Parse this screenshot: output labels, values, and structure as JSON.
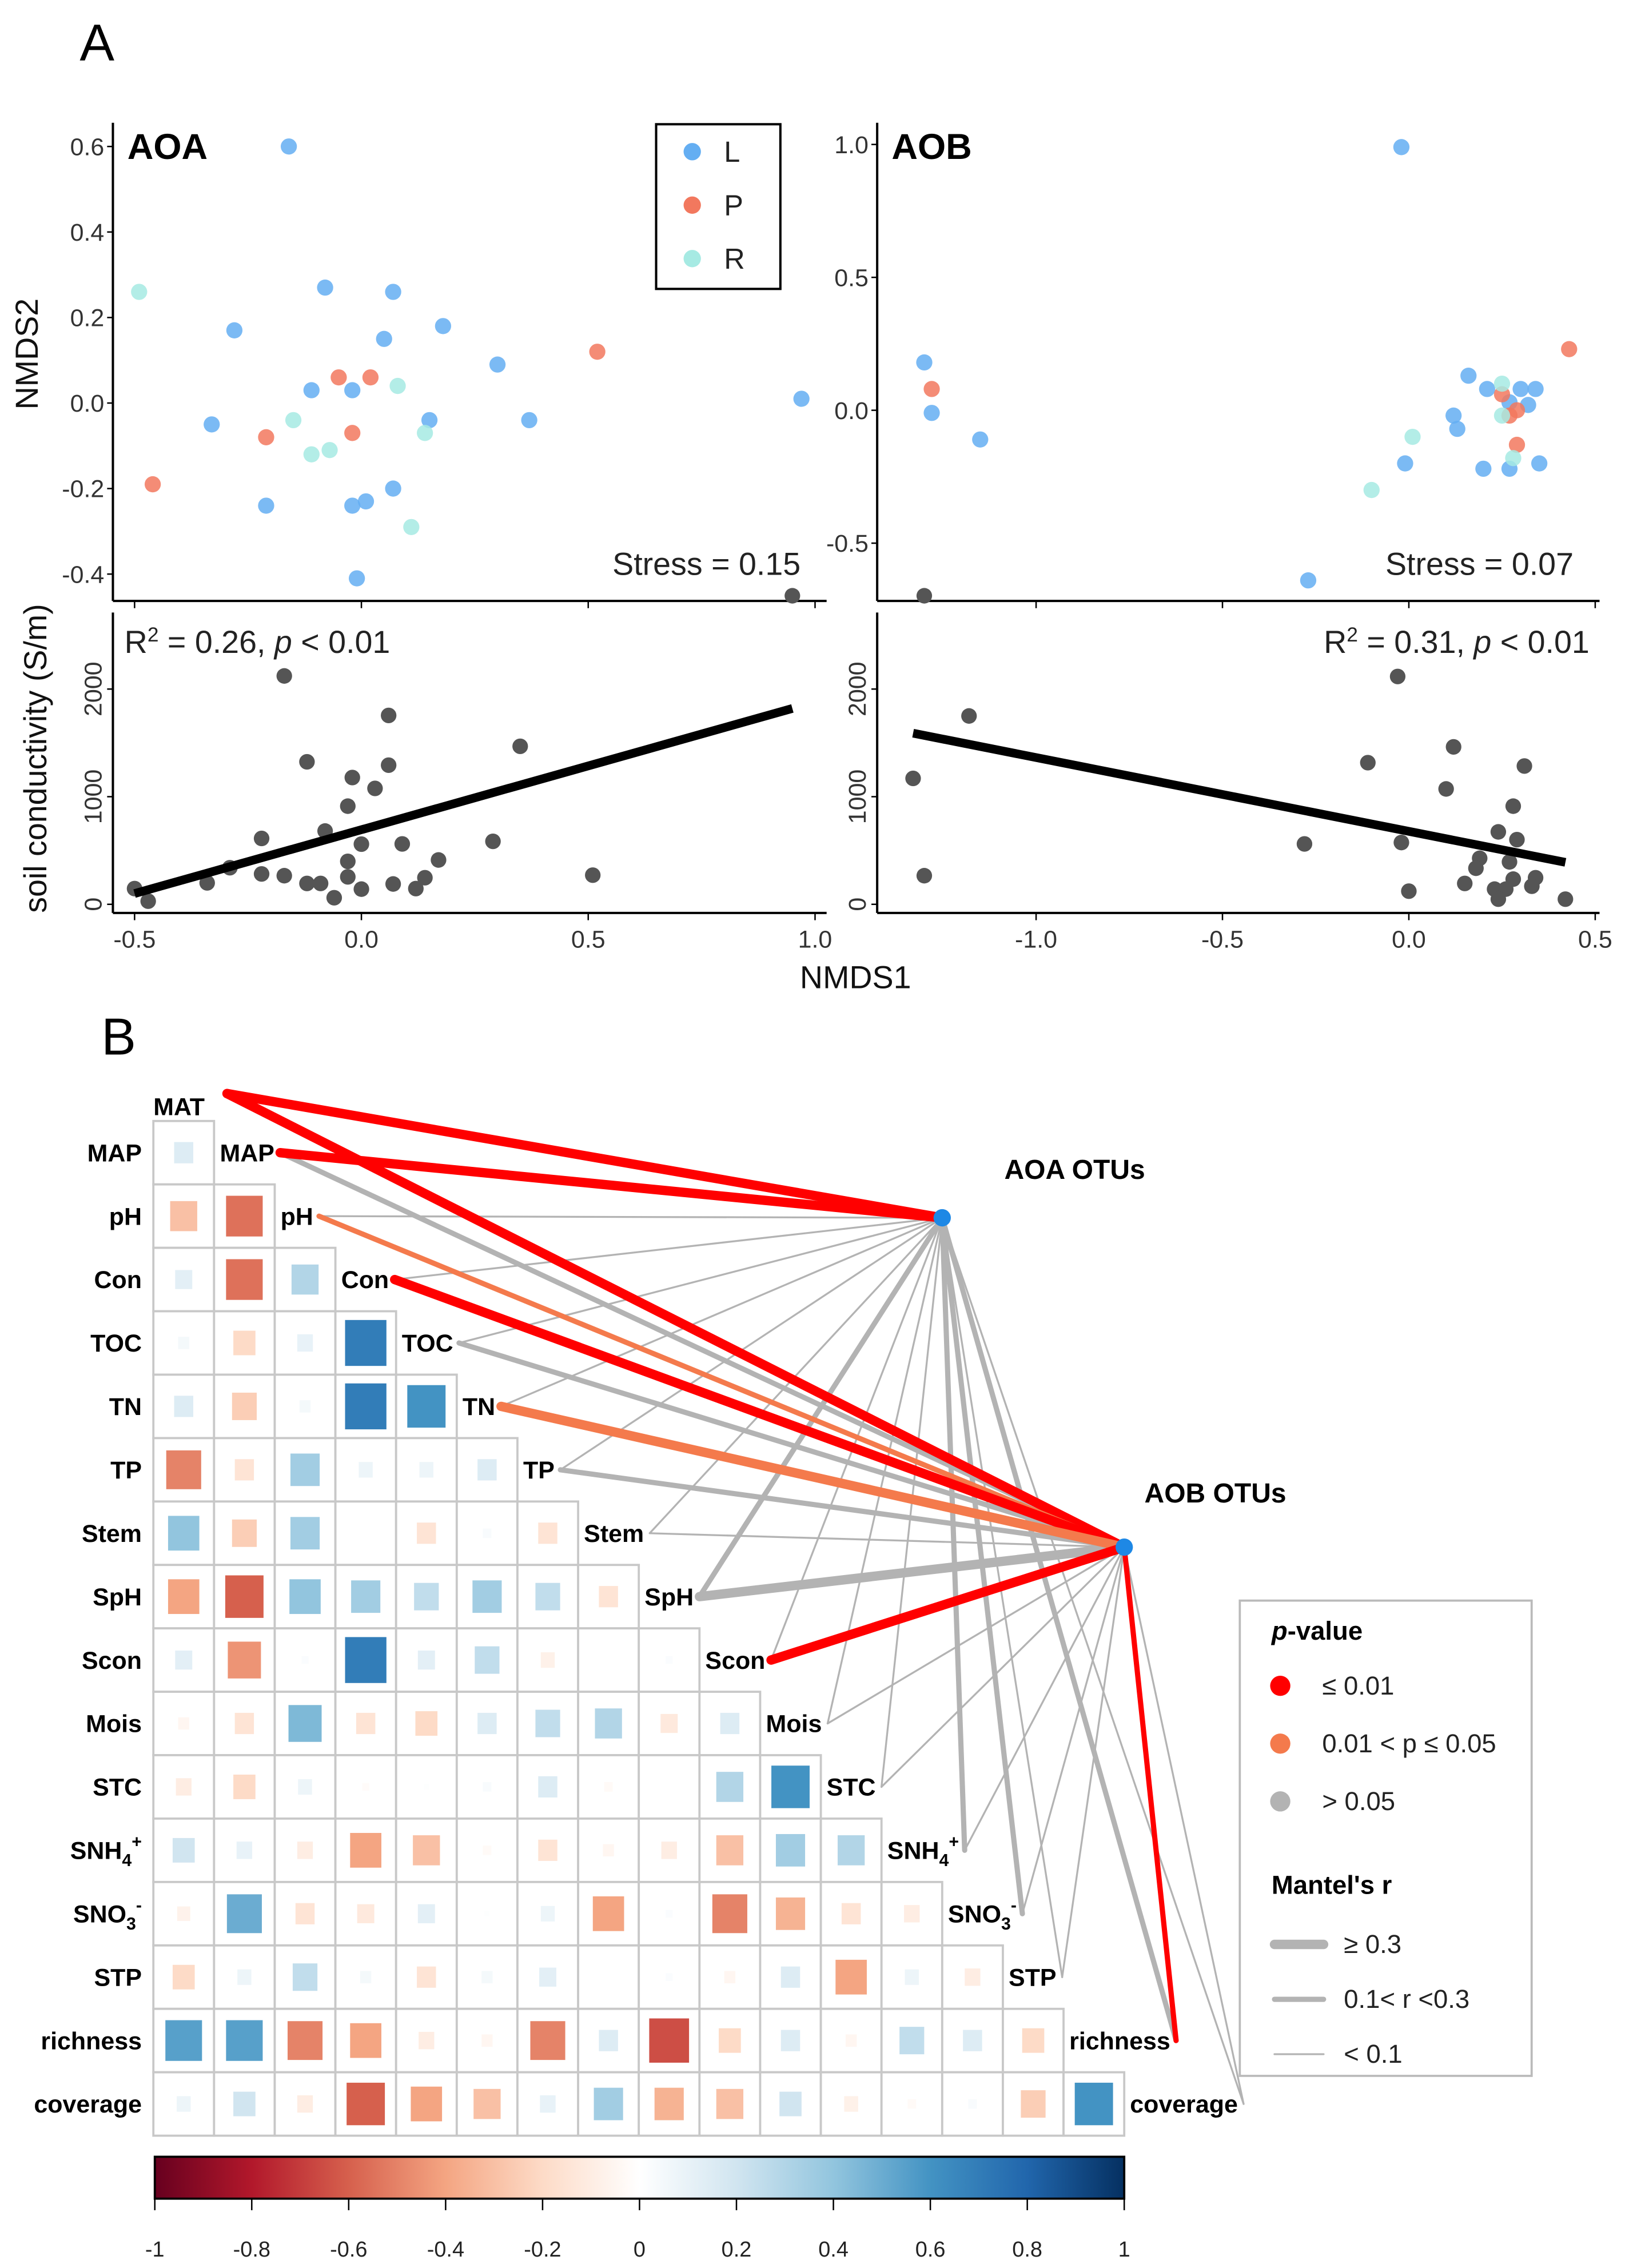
{
  "panel_labels": {
    "a": "A",
    "b": "B"
  },
  "chart_data": [
    {
      "id": "aoa_nmds",
      "type": "scatter",
      "title": "AOA",
      "xlabel": "NMDS1",
      "ylabel": "NMDS2",
      "xticks": [
        -0.5,
        0.0,
        0.5,
        1.0
      ],
      "yticks": [
        -0.4,
        -0.2,
        0.0,
        0.2,
        0.4,
        0.6
      ],
      "ytick_labels": [
        "-0.4",
        "-0.2",
        "0.0",
        "0.2",
        "0.4",
        "0.6"
      ],
      "annotation": "Stress = 0.15",
      "legend": {
        "position": "top-right",
        "entries": [
          "L",
          "P",
          "R"
        ]
      },
      "series": [
        {
          "name": "L",
          "color": "#64AEF2",
          "points": [
            [
              -0.16,
              0.6
            ],
            [
              -0.08,
              0.27
            ],
            [
              0.07,
              0.26
            ],
            [
              0.18,
              0.18
            ],
            [
              -0.28,
              0.17
            ],
            [
              0.05,
              0.15
            ],
            [
              0.3,
              0.09
            ],
            [
              -0.11,
              0.03
            ],
            [
              -0.02,
              0.03
            ],
            [
              0.97,
              0.01
            ],
            [
              -0.33,
              -0.05
            ],
            [
              0.15,
              -0.04
            ],
            [
              0.37,
              -0.04
            ],
            [
              -0.21,
              -0.24
            ],
            [
              -0.02,
              -0.24
            ],
            [
              0.01,
              -0.23
            ],
            [
              0.07,
              -0.2
            ],
            [
              -0.01,
              -0.41
            ]
          ]
        },
        {
          "name": "P",
          "color": "#F2785E",
          "points": [
            [
              -0.46,
              -0.19
            ],
            [
              0.52,
              0.12
            ],
            [
              -0.05,
              0.06
            ],
            [
              0.02,
              0.06
            ],
            [
              -0.21,
              -0.08
            ],
            [
              -0.02,
              -0.07
            ]
          ]
        },
        {
          "name": "R",
          "color": "#A6EAE3",
          "points": [
            [
              -0.49,
              0.26
            ],
            [
              0.08,
              0.04
            ],
            [
              -0.15,
              -0.04
            ],
            [
              0.14,
              -0.07
            ],
            [
              -0.11,
              -0.12
            ],
            [
              -0.07,
              -0.11
            ],
            [
              0.11,
              -0.29
            ]
          ]
        }
      ]
    },
    {
      "id": "aob_nmds",
      "type": "scatter",
      "title": "AOB",
      "xlabel": "NMDS1",
      "ylabel": "NMDS2",
      "xticks": [
        -1.0,
        -0.5,
        0.0,
        0.5
      ],
      "yticks": [
        -0.5,
        0.0,
        0.5,
        1.0
      ],
      "ytick_labels": [
        "-0.5",
        "0.0",
        "0.5",
        "1.0"
      ],
      "annotation": "Stress = 0.07",
      "series": [
        {
          "name": "L",
          "color": "#64AEF2",
          "points": [
            [
              -0.02,
              0.99
            ],
            [
              -1.3,
              0.18
            ],
            [
              -1.28,
              -0.01
            ],
            [
              -1.15,
              -0.11
            ],
            [
              -0.27,
              -0.64
            ],
            [
              -0.01,
              -0.2
            ],
            [
              0.16,
              0.13
            ],
            [
              0.21,
              0.08
            ],
            [
              0.12,
              -0.02
            ],
            [
              0.13,
              -0.07
            ],
            [
              0.2,
              -0.22
            ],
            [
              0.27,
              -0.22
            ],
            [
              0.35,
              -0.2
            ],
            [
              0.3,
              0.08
            ],
            [
              0.34,
              0.08
            ],
            [
              0.32,
              0.02
            ],
            [
              0.27,
              0.03
            ]
          ]
        },
        {
          "name": "P",
          "color": "#F2785E",
          "points": [
            [
              -1.28,
              0.08
            ],
            [
              0.43,
              0.23
            ],
            [
              0.25,
              0.06
            ],
            [
              0.29,
              0.0
            ],
            [
              0.27,
              -0.02
            ],
            [
              0.29,
              -0.13
            ]
          ]
        },
        {
          "name": "R",
          "color": "#A6EAE3",
          "points": [
            [
              -0.1,
              -0.3
            ],
            [
              0.01,
              -0.1
            ],
            [
              0.25,
              0.1
            ],
            [
              0.25,
              -0.02
            ],
            [
              0.28,
              -0.18
            ]
          ]
        }
      ]
    },
    {
      "id": "aoa_cond",
      "type": "scatter",
      "xlabel": "NMDS1",
      "ylabel": "soil conductivity (S/m)",
      "xticks": [
        -0.5,
        0.0,
        0.5,
        1.0
      ],
      "xtick_labels": [
        "-0.5",
        "0.0",
        "0.5",
        "1.0"
      ],
      "yticks": [
        0,
        1000,
        2000
      ],
      "ytick_labels": [
        "0",
        "1000",
        "2000"
      ],
      "annotation": {
        "r": "R",
        "sup": "2",
        "value": " = 0.26, ",
        "p": "p",
        "p_value": " < 0.01"
      },
      "color": "#555555",
      "points": [
        [
          0.95,
          2867
        ],
        [
          -0.17,
          2122
        ],
        [
          0.06,
          1755
        ],
        [
          0.35,
          1468
        ],
        [
          -0.12,
          1324
        ],
        [
          0.06,
          1293
        ],
        [
          -0.02,
          1178
        ],
        [
          0.03,
          1077
        ],
        [
          -0.03,
          912
        ],
        [
          -0.08,
          681
        ],
        [
          -0.22,
          612
        ],
        [
          0.29,
          585
        ],
        [
          0.0,
          559
        ],
        [
          0.09,
          561
        ],
        [
          0.17,
          412
        ],
        [
          -0.03,
          399
        ],
        [
          -0.29,
          340
        ],
        [
          -0.22,
          282
        ],
        [
          -0.17,
          266
        ],
        [
          -0.03,
          255
        ],
        [
          0.14,
          247
        ],
        [
          0.51,
          271
        ],
        [
          -0.34,
          199
        ],
        [
          -0.12,
          194
        ],
        [
          -0.09,
          194
        ],
        [
          0.07,
          189
        ],
        [
          0.0,
          141
        ],
        [
          0.12,
          146
        ],
        [
          -0.5,
          146
        ],
        [
          -0.06,
          61
        ],
        [
          -0.47,
          29
        ]
      ],
      "fit": [
        [
          -0.5,
          100
        ],
        [
          0.95,
          1820
        ]
      ]
    },
    {
      "id": "aob_cond",
      "type": "scatter",
      "xlabel": "NMDS1",
      "ylabel": "soil conductivity (S/m)",
      "xticks": [
        -1.0,
        -0.5,
        0.0,
        0.5
      ],
      "xtick_labels": [
        "-1.0",
        "-0.5",
        "0.0",
        "0.5"
      ],
      "yticks": [
        0,
        1000,
        2000
      ],
      "ytick_labels": [
        "0",
        "1000",
        "2000"
      ],
      "annotation": {
        "r": "R",
        "sup": "2",
        "value": " = 0.31, ",
        "p": "p",
        "p_value": " < 0.01"
      },
      "color": "#555555",
      "points": [
        [
          -1.3,
          2867
        ],
        [
          -0.03,
          2117
        ],
        [
          -1.18,
          1750
        ],
        [
          0.12,
          1463
        ],
        [
          -0.11,
          1316
        ],
        [
          0.31,
          1285
        ],
        [
          -1.33,
          1170
        ],
        [
          0.1,
          1072
        ],
        [
          0.28,
          912
        ],
        [
          0.24,
          673
        ],
        [
          -0.28,
          561
        ],
        [
          -0.02,
          574
        ],
        [
          0.29,
          601
        ],
        [
          0.19,
          428
        ],
        [
          0.18,
          335
        ],
        [
          0.27,
          394
        ],
        [
          -1.3,
          266
        ],
        [
          0.34,
          247
        ],
        [
          0.15,
          194
        ],
        [
          0.28,
          234
        ],
        [
          0.0,
          122
        ],
        [
          0.23,
          141
        ],
        [
          0.26,
          141
        ],
        [
          0.33,
          168
        ],
        [
          0.24,
          48
        ],
        [
          0.42,
          48
        ]
      ],
      "fit": [
        [
          -1.33,
          1590
        ],
        [
          0.42,
          390
        ]
      ]
    },
    {
      "id": "correlation",
      "type": "heatmap",
      "variables": [
        {
          "name": "MAT"
        },
        {
          "name": "MAP"
        },
        {
          "name": "pH"
        },
        {
          "name": "Con"
        },
        {
          "name": "TOC"
        },
        {
          "name": "TN"
        },
        {
          "name": "TP"
        },
        {
          "name": "Stem"
        },
        {
          "name": "SpH"
        },
        {
          "name": "Scon"
        },
        {
          "name": "Mois"
        },
        {
          "name": "STC"
        },
        {
          "name": "SNH",
          "sub": "4",
          "sup": "+"
        },
        {
          "name": "SNO",
          "sub": "3",
          "sup": "-"
        },
        {
          "name": "STP"
        },
        {
          "name": "richness"
        },
        {
          "name": "coverage"
        }
      ],
      "lower": [
        [],
        [
          0.15
        ],
        [
          -0.3,
          -0.55
        ],
        [
          0.12,
          -0.55,
          0.3
        ],
        [
          0.05,
          -0.2,
          0.1,
          0.7
        ],
        [
          0.15,
          -0.25,
          0.05,
          0.7,
          0.6
        ],
        [
          -0.5,
          -0.15,
          0.35,
          0.08,
          0.08,
          0.15
        ],
        [
          0.4,
          -0.25,
          0.35,
          0,
          -0.15,
          0.03,
          -0.15
        ],
        [
          -0.4,
          -0.6,
          0.4,
          0.35,
          0.25,
          0.35,
          0.25,
          -0.15
        ],
        [
          0.12,
          -0.45,
          0.02,
          0.7,
          0.12,
          0.25,
          -0.08,
          0,
          0.02
        ],
        [
          -0.05,
          -0.15,
          0.45,
          -0.15,
          -0.2,
          0.15,
          0.25,
          0.3,
          -0.12,
          0.15
        ],
        [
          -0.1,
          -0.2,
          0.08,
          -0.02,
          0.01,
          0.03,
          0.15,
          -0.03,
          0,
          0.3,
          0.6
        ],
        [
          0.2,
          0.1,
          -0.1,
          -0.4,
          -0.3,
          -0.03,
          -0.15,
          -0.05,
          -0.1,
          -0.3,
          0.35,
          0.3
        ],
        [
          -0.07,
          0.5,
          -0.15,
          -0.12,
          0.12,
          0.01,
          0.08,
          -0.4,
          0.02,
          -0.5,
          -0.35,
          -0.15,
          -0.1
        ],
        [
          -0.2,
          0.08,
          0.25,
          0.05,
          -0.15,
          0.05,
          0.12,
          0,
          0.02,
          -0.05,
          0.15,
          -0.4,
          0.08,
          -0.1
        ],
        [
          0.55,
          0.55,
          -0.5,
          -0.4,
          -0.1,
          -0.05,
          -0.5,
          0.15,
          -0.65,
          -0.2,
          0.15,
          -0.05,
          0.25,
          0.15,
          -0.2
        ],
        [
          0.08,
          0.2,
          -0.1,
          -0.6,
          -0.4,
          -0.3,
          0.1,
          0.35,
          -0.35,
          -0.3,
          0.2,
          -0.08,
          -0.03,
          0.03,
          -0.25,
          0.6
        ]
      ],
      "colorbar": {
        "ticks": [
          -1,
          -0.8,
          -0.6,
          -0.4,
          -0.2,
          0,
          0.2,
          0.4,
          0.6,
          0.8,
          1
        ],
        "tick_labels": [
          "-1",
          "-0.8",
          "-0.6",
          "-0.4",
          "-0.2",
          "0",
          "0.2",
          "0.4",
          "0.6",
          "0.8",
          "1"
        ],
        "colors": [
          "#67001F",
          "#B2182B",
          "#D6604D",
          "#F4A582",
          "#FDDBC7",
          "#FFFFFF",
          "#D1E5F0",
          "#92C5DE",
          "#4393C3",
          "#2166AC",
          "#053061"
        ]
      }
    },
    {
      "id": "mantel",
      "type": "network",
      "nodes": [
        "AOA OTUs",
        "AOB OTUs"
      ],
      "node_color": "#1E88E5",
      "p_colors": {
        "p<=0.01": "#FF0000",
        "0.01<p<=0.05": "#F47A4C",
        "p>0.05": "#B3B3B3"
      },
      "links": {
        "AOA OTUs": [
          "p<=0.01|r>=0.3",
          "p<=0.01|r>=0.3",
          "p>0.05|r<0.1",
          "p>0.05|r<0.1",
          "p>0.05|r<0.1",
          "p>0.05|r<0.1",
          "p>0.05|r<0.1",
          "p>0.05|r<0.1",
          "p>0.05|0.1<r<0.3",
          "p>0.05|r<0.1",
          "p>0.05|r<0.1",
          "p>0.05|r<0.1",
          "p>0.05|0.1<r<0.3",
          "p>0.05|0.1<r<0.3",
          "p>0.05|r<0.1",
          "p>0.05|0.1<r<0.3",
          "p>0.05|r<0.1"
        ],
        "AOB OTUs": [
          "p<=0.01|r>=0.3",
          "p>0.05|0.1<r<0.3",
          "0.01<p<=0.05|0.1<r<0.3",
          "p<=0.01|r>=0.3",
          "p>0.05|0.1<r<0.3",
          "0.01<p<=0.05|r>=0.3",
          "p>0.05|0.1<r<0.3",
          "p>0.05|r<0.1",
          "p>0.05|r>=0.3",
          "p<=0.01|r>=0.3",
          "p>0.05|r<0.1",
          "p>0.05|r<0.1",
          "p>0.05|r<0.1",
          "p>0.05|r<0.1",
          "p>0.05|r<0.1",
          "p<=0.01|0.1<r<0.3",
          "p>0.05|r<0.1"
        ]
      },
      "legend": {
        "p_title_italic": "p",
        "p_title_rest": "-value",
        "p_items": [
          "≤ 0.01",
          "0.01 < p ≤ 0.05",
          "> 0.05"
        ],
        "r_title": "Mantel's r",
        "r_items": [
          "≥ 0.3",
          "0.1< r <0.3",
          "< 0.1"
        ]
      }
    }
  ]
}
